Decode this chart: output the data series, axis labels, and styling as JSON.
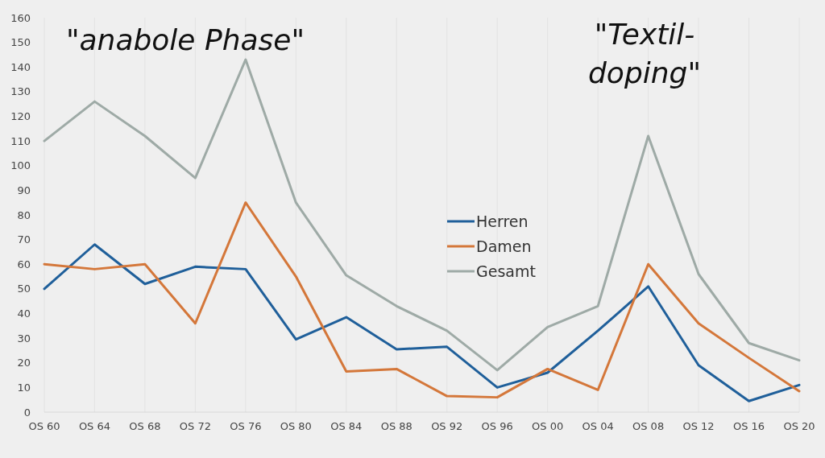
{
  "chart_data": {
    "type": "line",
    "categories": [
      "OS 60",
      "OS 64",
      "OS 68",
      "OS 72",
      "OS 76",
      "OS 80",
      "OS 84",
      "OS 88",
      "OS 92",
      "OS 96",
      "OS 00",
      "OS 04",
      "OS 08",
      "OS 12",
      "OS 16",
      "OS 20"
    ],
    "series": [
      {
        "name": "Herren",
        "color": "#1f5f9a",
        "values": [
          50,
          68,
          52,
          59,
          58,
          29.5,
          38.5,
          25.5,
          26.5,
          10,
          16,
          33,
          51,
          19,
          4.5,
          11
        ]
      },
      {
        "name": "Damen",
        "color": "#d4773a",
        "values": [
          60,
          58,
          60,
          36,
          85,
          55,
          16.5,
          17.5,
          6.5,
          6,
          17.5,
          9,
          60,
          36,
          22,
          8.5
        ]
      },
      {
        "name": "Gesamt",
        "color": "#9eaaa6",
        "values": [
          110,
          126,
          112,
          95,
          143,
          85,
          55.5,
          43,
          33,
          17,
          34.5,
          43,
          112,
          56,
          28,
          21
        ]
      }
    ],
    "ylim": [
      0,
      160
    ],
    "yticks": [
      0,
      10,
      20,
      30,
      40,
      50,
      60,
      70,
      80,
      90,
      100,
      110,
      120,
      130,
      140,
      150,
      160
    ],
    "grid": "x",
    "legend": "center",
    "marker": "none",
    "line_style": "solid",
    "annotations": [
      "\"anabole Phase\"",
      "\"Textil-\ndoping\""
    ]
  }
}
